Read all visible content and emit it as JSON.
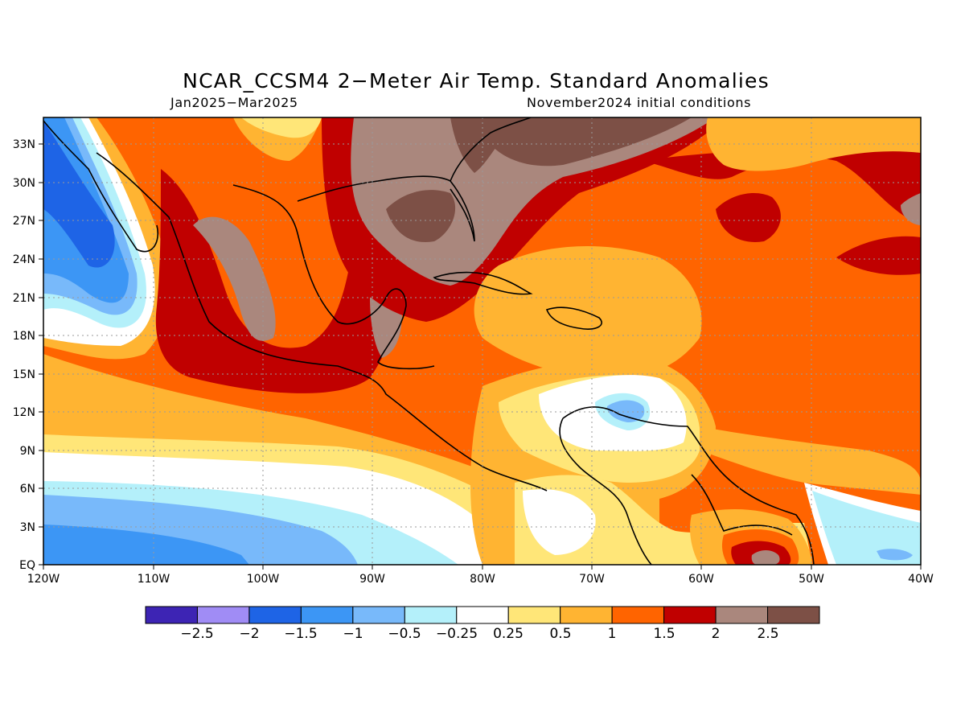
{
  "title": "NCAR_CCSM4 2−Meter Air Temp. Standard Anomalies",
  "subtitle_left": "Jan2025−Mar2025",
  "subtitle_right": "November2024 initial conditions",
  "map": {
    "lon_labels": [
      "120W",
      "110W",
      "100W",
      "90W",
      "80W",
      "70W",
      "60W",
      "50W",
      "40W"
    ],
    "lat_labels": [
      "EQ",
      "3N",
      "6N",
      "9N",
      "12N",
      "15N",
      "18N",
      "21N",
      "24N",
      "27N",
      "30N",
      "33N"
    ],
    "region": "Central America, Mexico, Caribbean and northern South America"
  },
  "colorbar": {
    "labels": [
      "−2.5",
      "−2",
      "−1.5",
      "−1",
      "−0.5",
      "−0.25",
      "0.25",
      "0.5",
      "1",
      "1.5",
      "2",
      "2.5"
    ],
    "colors": [
      "#3d24b4",
      "#a08cf5",
      "#1e64e6",
      "#3c96f5",
      "#78b9fa",
      "#b4f0fa",
      "#ffffff",
      "#ffe678",
      "#ffb432",
      "#ff6400",
      "#c00000",
      "#aa877d",
      "#7d5046"
    ]
  },
  "legend_colors": {
    "neg_strong": "#1e64e6",
    "neg_mid": "#3c96f5",
    "neg_light": "#78b9fa",
    "neg_faint": "#b4f0fa",
    "neutral": "#ffffff",
    "pos_faint": "#ffe678",
    "pos_light": "#ffb432",
    "pos_mid": "#ff6400",
    "pos_strong": "#c00000",
    "pos_very": "#aa877d",
    "pos_extreme": "#7d5046"
  }
}
